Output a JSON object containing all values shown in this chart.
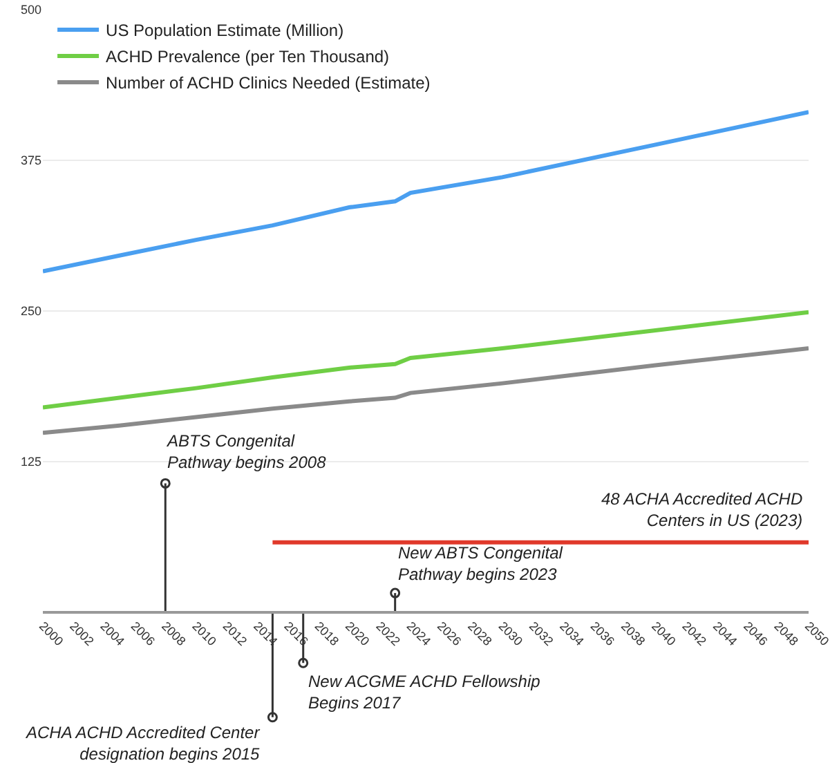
{
  "chart_data": {
    "type": "line",
    "x": [
      2000,
      2005,
      2010,
      2015,
      2020,
      2023,
      2024,
      2030,
      2040,
      2050
    ],
    "series": [
      {
        "name": "US Population Estimate (Million)",
        "color": "#4a9ff0",
        "values": [
          283,
          296,
          309,
          321,
          336,
          341,
          348,
          361,
          388,
          415
        ]
      },
      {
        "name": "ACHD Prevalence (per Ten Thousand)",
        "color": "#6fce45",
        "values": [
          170,
          178,
          186,
          195,
          203,
          206,
          211,
          219,
          234,
          249
        ]
      },
      {
        "name": "Number of ACHD Clinics Needed (Estimate)",
        "color": "#8a8a8a",
        "values": [
          149,
          155,
          162,
          169,
          175,
          178,
          182,
          190,
          205,
          219
        ]
      },
      {
        "type": "lollipop",
        "marker": "circle",
        "color": "#333333",
        "x": [
          2008,
          2015,
          2017,
          2023
        ],
        "values": [
          107,
          -87,
          -42,
          16
        ]
      },
      {
        "type": "line",
        "color": "#e0392b",
        "x": [
          2015,
          2050
        ],
        "values": [
          58,
          58
        ]
      }
    ],
    "annotations": [
      {
        "text": "ABTS Congenital\nPathway begins 2008",
        "x": 2008,
        "y": 107
      },
      {
        "text": "ACHA ACHD Accredited Center\ndesignation begins 2015",
        "x": 2015,
        "y": -87
      },
      {
        "text": "New ACGME ACHD Fellowship\nBegins 2017",
        "x": 2017,
        "y": -42
      },
      {
        "text": "New ABTS Congenital\nPathway begins 2023",
        "x": 2023,
        "y": 16
      },
      {
        "text": "48 ACHA Accredited ACHD\nCenters in US (2023)",
        "x": 2050,
        "y": 58
      }
    ],
    "xlim": [
      2000,
      2050
    ],
    "xticks": [
      2000,
      2002,
      2004,
      2006,
      2008,
      2010,
      2012,
      2014,
      2016,
      2018,
      2020,
      2022,
      2024,
      2026,
      2028,
      2030,
      2032,
      2034,
      2036,
      2038,
      2040,
      2042,
      2044,
      2046,
      2048,
      2050
    ],
    "ylim": [
      -125,
      500
    ],
    "yticks": [
      125,
      250,
      375,
      500
    ],
    "grid": "y",
    "legend": "top left",
    "marker": "none",
    "line_style": "solid"
  }
}
